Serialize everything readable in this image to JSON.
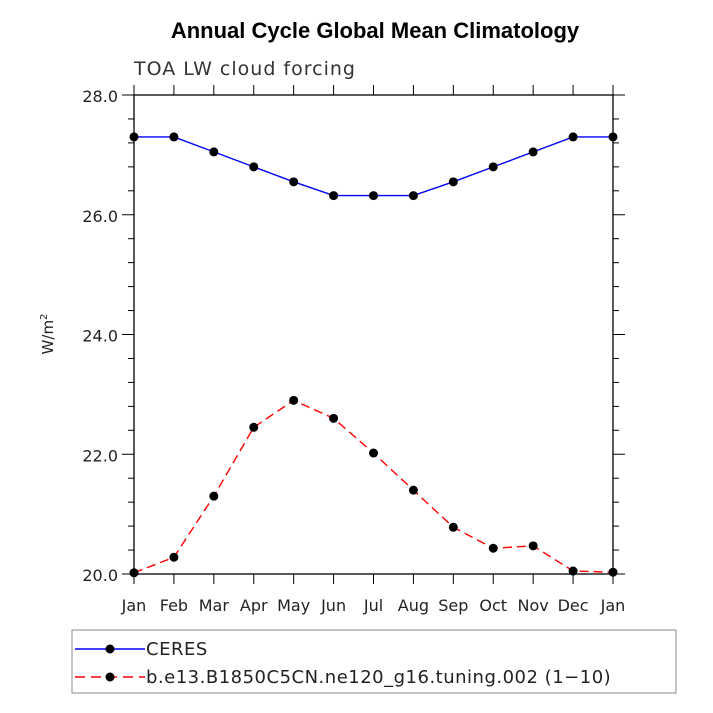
{
  "chart_data": {
    "type": "line",
    "title": "Annual Cycle Global Mean Climatology",
    "subtitle": "TOA LW cloud forcing",
    "ylabel_base": "W/m",
    "ylabel_sup": "2",
    "categories": [
      "Jan",
      "Feb",
      "Mar",
      "Apr",
      "May",
      "Jun",
      "Jul",
      "Aug",
      "Sep",
      "Oct",
      "Nov",
      "Dec",
      "Jan"
    ],
    "ylim": [
      20.0,
      28.0
    ],
    "yticks": [
      20.0,
      22.0,
      24.0,
      26.0,
      28.0
    ],
    "ytick_labels": [
      "20.0",
      "22.0",
      "24.0",
      "26.0",
      "28.0"
    ],
    "series": [
      {
        "name": "CERES",
        "color": "#0000ff",
        "dash": "solid",
        "values": [
          27.3,
          27.3,
          27.05,
          26.8,
          26.55,
          26.32,
          26.32,
          26.32,
          26.55,
          26.8,
          27.05,
          27.3,
          27.3
        ]
      },
      {
        "name": "b.e13.B1850C5CN.ne120_g16.tuning.002 (1−10)",
        "color": "#ff0000",
        "dash": "dashed",
        "values": [
          20.02,
          20.28,
          21.3,
          22.45,
          22.9,
          22.6,
          22.02,
          21.4,
          20.78,
          20.43,
          20.47,
          20.05,
          20.03
        ]
      }
    ]
  }
}
